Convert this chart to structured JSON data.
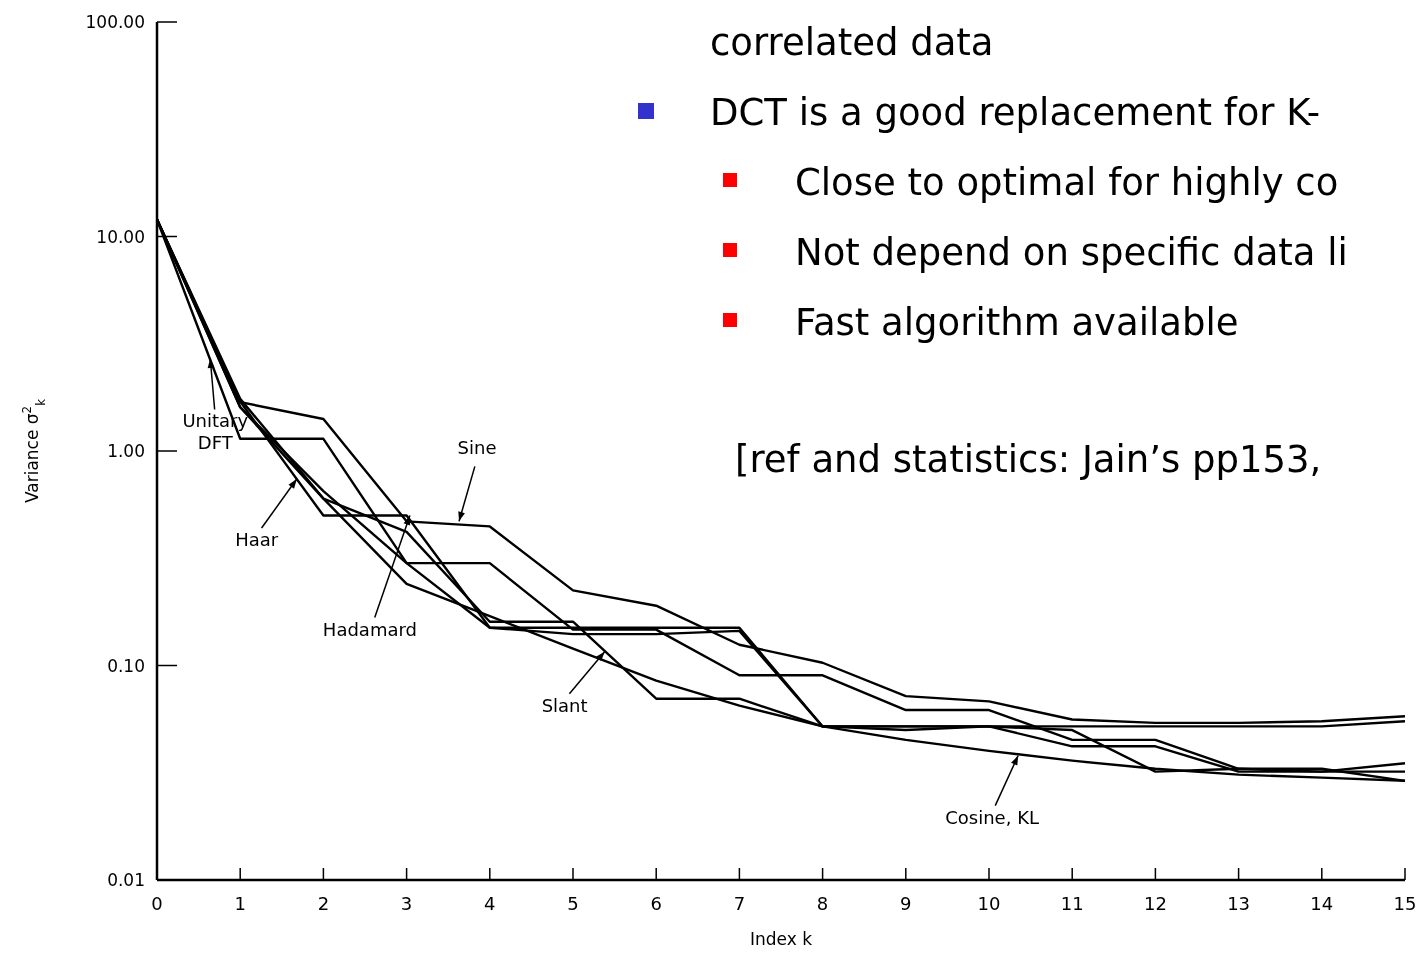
{
  "chart_data": {
    "type": "line",
    "xlabel": "Index k",
    "ylabel": "Variance σ$^{2}$$_{k}$",
    "log": "y",
    "grid": false,
    "marker": "none",
    "line_style": "solid",
    "x": [
      0,
      1,
      2,
      3,
      4,
      5,
      6,
      7,
      8,
      9,
      10,
      11,
      12,
      13,
      14,
      15
    ],
    "xlim": [
      0,
      15
    ],
    "xticks": [
      0,
      1,
      2,
      3,
      4,
      5,
      6,
      7,
      8,
      9,
      10,
      11,
      12,
      13,
      14,
      15
    ],
    "ylim": [
      0.01,
      100
    ],
    "yticks": [
      {
        "value": 0.01,
        "label": "0.01"
      },
      {
        "value": 0.1,
        "label": "0.10"
      },
      {
        "value": 1,
        "label": "1.00"
      },
      {
        "value": 10,
        "label": "10.00"
      },
      {
        "value": 100,
        "label": "100.00"
      }
    ],
    "series": [
      {
        "color": "#000000",
        "values": [
          12,
          1.14,
          1.14,
          0.3,
          0.3,
          0.147,
          0.147,
          0.09,
          0.09,
          0.062,
          0.062,
          0.045,
          0.045,
          0.033,
          0.033,
          0.029
        ]
      },
      {
        "color": "#000000",
        "values": [
          12,
          1.7,
          0.5,
          0.5,
          0.15,
          0.15,
          0.15,
          0.15,
          0.052,
          0.052,
          0.052,
          0.052,
          0.052,
          0.052,
          0.052,
          0.055
        ]
      },
      {
        "color": "#000000",
        "values": [
          12,
          1.6,
          0.65,
          0.3,
          0.15,
          0.14,
          0.14,
          0.145,
          0.052,
          0.052,
          0.052,
          0.042,
          0.042,
          0.032,
          0.032,
          0.032
        ]
      },
      {
        "color": "#000000",
        "values": [
          12,
          1.69,
          1.41,
          0.47,
          0.445,
          0.224,
          0.19,
          0.125,
          0.103,
          0.072,
          0.068,
          0.056,
          0.054,
          0.054,
          0.055,
          0.058
        ]
      },
      {
        "color": "#000000",
        "values": [
          12,
          1.6,
          0.6,
          0.42,
          0.16,
          0.16,
          0.07,
          0.07,
          0.052,
          0.05,
          0.052,
          0.05,
          0.032,
          0.033,
          0.032,
          0.035
        ]
      },
      {
        "color": "#000000",
        "values": [
          12,
          1.75,
          0.6,
          0.24,
          0.17,
          0.12,
          0.085,
          0.065,
          0.052,
          0.045,
          0.04,
          0.036,
          0.033,
          0.031,
          0.03,
          0.029
        ]
      }
    ],
    "annotations": [
      {
        "text": "Unitary\nDFT",
        "x": 0.64,
        "y": 2.7
      },
      {
        "text": "Haar",
        "x": 1.68,
        "y": 0.74
      },
      {
        "text": "Hadamard",
        "x": 3.04,
        "y": 0.5
      },
      {
        "text": "Sine",
        "x": 3.63,
        "y": 0.47
      },
      {
        "text": "Slant",
        "x": 5.38,
        "y": 0.116
      },
      {
        "text": "Cosine, KL",
        "x": 10.35,
        "y": 0.038
      },
      "correlated data",
      "DCT is a good replacement for K-",
      "Close to optimal for highly co",
      "Not depend on specific data li",
      "Fast algorithm available",
      "[ref and statistics: Jain’s pp153,"
    ]
  }
}
